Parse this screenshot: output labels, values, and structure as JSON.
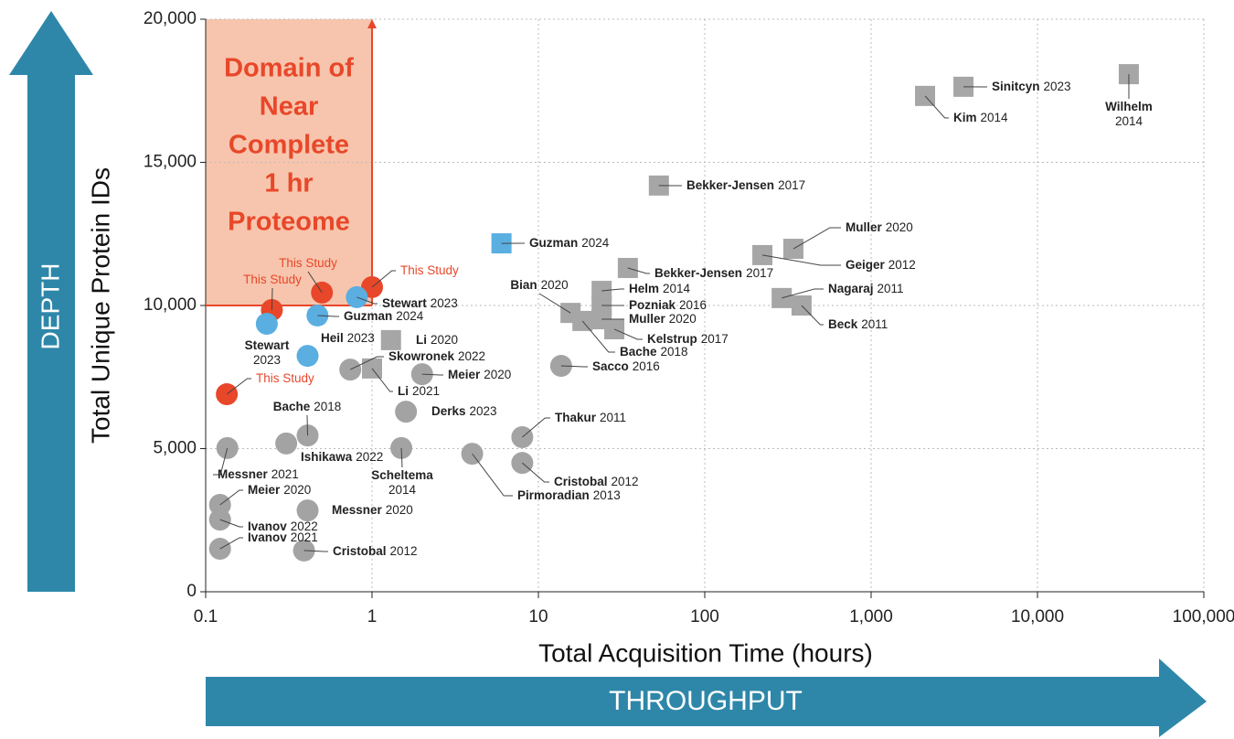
{
  "chart_data": {
    "type": "scatter",
    "xlabel": "Total Acquisition Time (hours)",
    "ylabel": "Total Unique Protein IDs",
    "xscale": "log",
    "xlim": [
      0.1,
      100000
    ],
    "ylim": [
      0,
      20000
    ],
    "xticks": [
      0.1,
      1,
      10,
      100,
      {
        "value": 1000,
        "label": "1,000"
      },
      {
        "value": 10000,
        "label": "10,000"
      },
      {
        "value": 100000,
        "label": "100,000"
      }
    ],
    "yticks": [
      0,
      {
        "value": 5000,
        "label": "5,000"
      },
      {
        "value": 10000,
        "label": "10,000"
      },
      {
        "value": 15000,
        "label": "15,000"
      },
      {
        "value": 20000,
        "label": "20,000"
      }
    ],
    "grid": true,
    "domain_label": [
      "Domain of",
      "Near",
      "Complete",
      "1 hr",
      "Proteome"
    ],
    "depth_label": "DEPTH",
    "throughput_label": "THROUGHPUT",
    "points": [
      {
        "x": 0.134,
        "y": 6900,
        "marker": "circle",
        "color": "#e8472a",
        "name": "This Study"
      },
      {
        "x": 0.25,
        "y": 9840,
        "marker": "circle",
        "color": "#e8472a",
        "name": "This Study"
      },
      {
        "x": 0.5,
        "y": 10450,
        "marker": "circle",
        "color": "#e8472a",
        "name": "This Study"
      },
      {
        "x": 1.0,
        "y": 10640,
        "marker": "circle",
        "color": "#e8472a",
        "name": "This Study"
      },
      {
        "x": 0.233,
        "y": 9360,
        "marker": "circle",
        "color": "#5aaee0",
        "name": "Stewart",
        "year": "2023"
      },
      {
        "x": 0.47,
        "y": 9650,
        "marker": "circle",
        "color": "#5aaee0",
        "name": "Guzman",
        "year": "2024"
      },
      {
        "x": 0.81,
        "y": 10290,
        "marker": "circle",
        "color": "#5aaee0",
        "name": "Stewart",
        "year": "2023"
      },
      {
        "x": 0.41,
        "y": 8240,
        "marker": "circle",
        "color": "#5aaee0",
        "name": "Heil",
        "year": "2023"
      },
      {
        "x": 6.0,
        "y": 12170,
        "marker": "square",
        "color": "#5aaee0",
        "name": "Guzman",
        "year": "2024"
      },
      {
        "x": 0.135,
        "y": 5020,
        "marker": "circle",
        "color": "#a3a3a3",
        "name": "Messner",
        "year": "2021"
      },
      {
        "x": 0.122,
        "y": 3035,
        "marker": "circle",
        "color": "#a3a3a3",
        "name": "Meier",
        "year": "2020"
      },
      {
        "x": 0.122,
        "y": 2520,
        "marker": "circle",
        "color": "#a3a3a3",
        "name": "Ivanov",
        "year": "2022"
      },
      {
        "x": 0.122,
        "y": 1500,
        "marker": "circle",
        "color": "#a3a3a3",
        "name": "Ivanov",
        "year": "2021"
      },
      {
        "x": 0.305,
        "y": 5180,
        "marker": "circle",
        "color": "#a3a3a3",
        "name": "Ishikawa",
        "year": "2022"
      },
      {
        "x": 0.41,
        "y": 5460,
        "marker": "circle",
        "color": "#a3a3a3",
        "name": "Bache",
        "year": "2018"
      },
      {
        "x": 0.41,
        "y": 2840,
        "marker": "circle",
        "color": "#a3a3a3",
        "name": "Messner",
        "year": "2020"
      },
      {
        "x": 0.39,
        "y": 1440,
        "marker": "circle",
        "color": "#a3a3a3",
        "name": "Cristobal",
        "year": "2012"
      },
      {
        "x": 0.74,
        "y": 7760,
        "marker": "circle",
        "color": "#a3a3a3",
        "name": "Skowronek",
        "year": "2022"
      },
      {
        "x": 2.0,
        "y": 7600,
        "marker": "circle",
        "color": "#a3a3a3",
        "name": "Meier",
        "year": "2020"
      },
      {
        "x": 1.6,
        "y": 6290,
        "marker": "circle",
        "color": "#a3a3a3",
        "name": "Derks",
        "year": "2023"
      },
      {
        "x": 1.5,
        "y": 5020,
        "marker": "circle",
        "color": "#a3a3a3",
        "name": "Scheltema",
        "year": "2014"
      },
      {
        "x": 4.0,
        "y": 4820,
        "marker": "circle",
        "color": "#a3a3a3",
        "name": "Pirmoradian",
        "year": "2013"
      },
      {
        "x": 8.0,
        "y": 5400,
        "marker": "circle",
        "color": "#a3a3a3",
        "name": "Thakur",
        "year": "2011"
      },
      {
        "x": 8.0,
        "y": 4500,
        "marker": "circle",
        "color": "#a3a3a3",
        "name": "Cristobal",
        "year": "2012"
      },
      {
        "x": 13.7,
        "y": 7890,
        "marker": "circle",
        "color": "#a3a3a3",
        "name": "Sacco",
        "year": "2016"
      },
      {
        "x": 1.3,
        "y": 8790,
        "marker": "square",
        "color": "#a6a6a6",
        "name": "Li",
        "year": "2020"
      },
      {
        "x": 1.0,
        "y": 7800,
        "marker": "square",
        "color": "#a6a6a6",
        "name": "Li",
        "year": "2021"
      },
      {
        "x": 15.6,
        "y": 9740,
        "marker": "square",
        "color": "#a6a6a6",
        "name": "Bian",
        "year": "2020"
      },
      {
        "x": 18.4,
        "y": 9460,
        "marker": "square",
        "color": "#a6a6a6",
        "name": "Bache",
        "year": "2018"
      },
      {
        "x": 24,
        "y": 10510,
        "marker": "square",
        "color": "#a6a6a6",
        "name": "Helm",
        "year": "2014"
      },
      {
        "x": 24,
        "y": 10000,
        "marker": "square",
        "color": "#a6a6a6",
        "name": "Pozniak",
        "year": "2016"
      },
      {
        "x": 24,
        "y": 9520,
        "marker": "square",
        "color": "#a6a6a6",
        "name": "Muller",
        "year": "2020"
      },
      {
        "x": 28.6,
        "y": 9170,
        "marker": "square",
        "color": "#a6a6a6",
        "name": "Kelstrup",
        "year": "2017"
      },
      {
        "x": 34.5,
        "y": 11310,
        "marker": "square",
        "color": "#a6a6a6",
        "name": "Bekker-Jensen",
        "year": "2017"
      },
      {
        "x": 53,
        "y": 14190,
        "marker": "square",
        "color": "#a6a6a6",
        "name": "Bekker-Jensen",
        "year": "2017"
      },
      {
        "x": 222,
        "y": 11760,
        "marker": "square",
        "color": "#a6a6a6",
        "name": "Geiger",
        "year": "2012"
      },
      {
        "x": 341,
        "y": 11980,
        "marker": "square",
        "color": "#a6a6a6",
        "name": "Muller",
        "year": "2020"
      },
      {
        "x": 290,
        "y": 10260,
        "marker": "square",
        "color": "#a6a6a6",
        "name": "Nagaraj",
        "year": "2011"
      },
      {
        "x": 382,
        "y": 10000,
        "marker": "square",
        "color": "#a6a6a6",
        "name": "Beck",
        "year": "2011"
      },
      {
        "x": 2110,
        "y": 17320,
        "marker": "square",
        "color": "#a6a6a6",
        "name": "Kim",
        "year": "2014"
      },
      {
        "x": 3590,
        "y": 17640,
        "marker": "square",
        "color": "#a6a6a6",
        "name": "Sinitcyn",
        "year": "2023"
      },
      {
        "x": 35400,
        "y": 18080,
        "marker": "square",
        "color": "#a6a6a6",
        "name": "Wilhelm",
        "year": "2014"
      }
    ]
  }
}
